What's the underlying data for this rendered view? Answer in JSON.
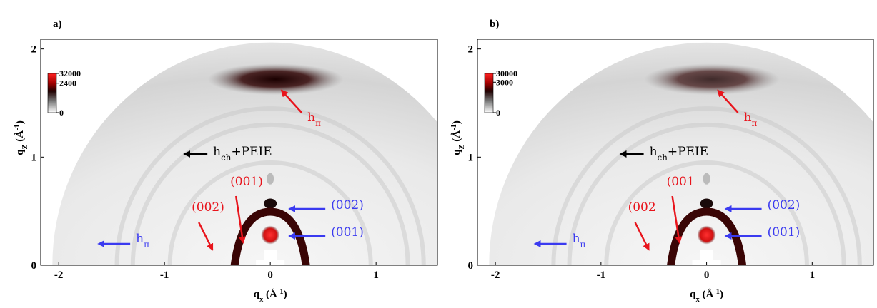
{
  "chart_data": [
    {
      "type": "image",
      "panel_label": "a)",
      "xlabel": [
        {
          "text": "q"
        },
        {
          "text": "x",
          "shift": "sub"
        },
        {
          "text": " (Å"
        },
        {
          "text": "-1",
          "shift": "super"
        },
        {
          "text": ")"
        }
      ],
      "ylabel": [
        {
          "text": "q"
        },
        {
          "text": "Z",
          "shift": "sub"
        },
        {
          "text": " (Å"
        },
        {
          "text": "-1",
          "shift": "super"
        },
        {
          "text": ")"
        }
      ],
      "xlim": [
        -2.17,
        1.58
      ],
      "ylim": [
        0,
        2.09
      ],
      "xticks": [
        -2,
        -1,
        0,
        1
      ],
      "yticks": [
        0,
        1,
        2
      ],
      "colorbar": {
        "clim": [
          0,
          32000
        ],
        "scale": "symlog",
        "ticks": [
          0,
          2400,
          32000
        ]
      },
      "annotations": [
        {
          "color": "#e8141c",
          "parts": [
            {
              "text": "h"
            },
            {
              "text": "π",
              "shift": "sub"
            }
          ]
        },
        {
          "color": "#000000",
          "parts": [
            {
              "text": "h"
            },
            {
              "text": "ch",
              "shift": "sub"
            },
            {
              "text": "+PEIE"
            }
          ]
        },
        {
          "color": "#e8141c",
          "parts": [
            {
              "text": "(001)"
            }
          ]
        },
        {
          "color": "#e8141c",
          "parts": [
            {
              "text": "(002)"
            }
          ]
        },
        {
          "color": "#3a3af0",
          "parts": [
            {
              "text": "(002)"
            }
          ]
        },
        {
          "color": "#3a3af0",
          "parts": [
            {
              "text": "(001)"
            }
          ]
        },
        {
          "color": "#3a3af0",
          "parts": [
            {
              "text": "h"
            },
            {
              "text": "π",
              "shift": "sub"
            }
          ]
        }
      ]
    },
    {
      "type": "image",
      "panel_label": "b)",
      "xlabel": [
        {
          "text": "q"
        },
        {
          "text": "x",
          "shift": "sub"
        },
        {
          "text": " (Å"
        },
        {
          "text": "-1",
          "shift": "super"
        },
        {
          "text": ")"
        }
      ],
      "ylabel": [
        {
          "text": "q"
        },
        {
          "text": "Z",
          "shift": "sub"
        },
        {
          "text": " (Å"
        },
        {
          "text": "-1",
          "shift": "super"
        },
        {
          "text": ")"
        }
      ],
      "xlim": [
        -2.17,
        1.58
      ],
      "ylim": [
        0,
        2.09
      ],
      "xticks": [
        -2,
        -1,
        0,
        1
      ],
      "yticks": [
        0,
        1,
        2
      ],
      "colorbar": {
        "clim": [
          0,
          30000
        ],
        "scale": "symlog",
        "ticks": [
          0,
          3000,
          30000
        ]
      },
      "annotations": [
        {
          "color": "#e8141c",
          "parts": [
            {
              "text": "h"
            },
            {
              "text": "π",
              "shift": "sub"
            }
          ]
        },
        {
          "color": "#000000",
          "parts": [
            {
              "text": "h"
            },
            {
              "text": "ch",
              "shift": "sub"
            },
            {
              "text": "+PEIE"
            }
          ]
        },
        {
          "color": "#e8141c",
          "parts": [
            {
              "text": "(001"
            }
          ]
        },
        {
          "color": "#e8141c",
          "parts": [
            {
              "text": "(002"
            }
          ]
        },
        {
          "color": "#3a3af0",
          "parts": [
            {
              "text": "(002)"
            }
          ]
        },
        {
          "color": "#3a3af0",
          "parts": [
            {
              "text": "(001)"
            }
          ]
        },
        {
          "color": "#3a3af0",
          "parts": [
            {
              "text": "h"
            },
            {
              "text": "π",
              "shift": "sub"
            }
          ]
        }
      ]
    }
  ]
}
